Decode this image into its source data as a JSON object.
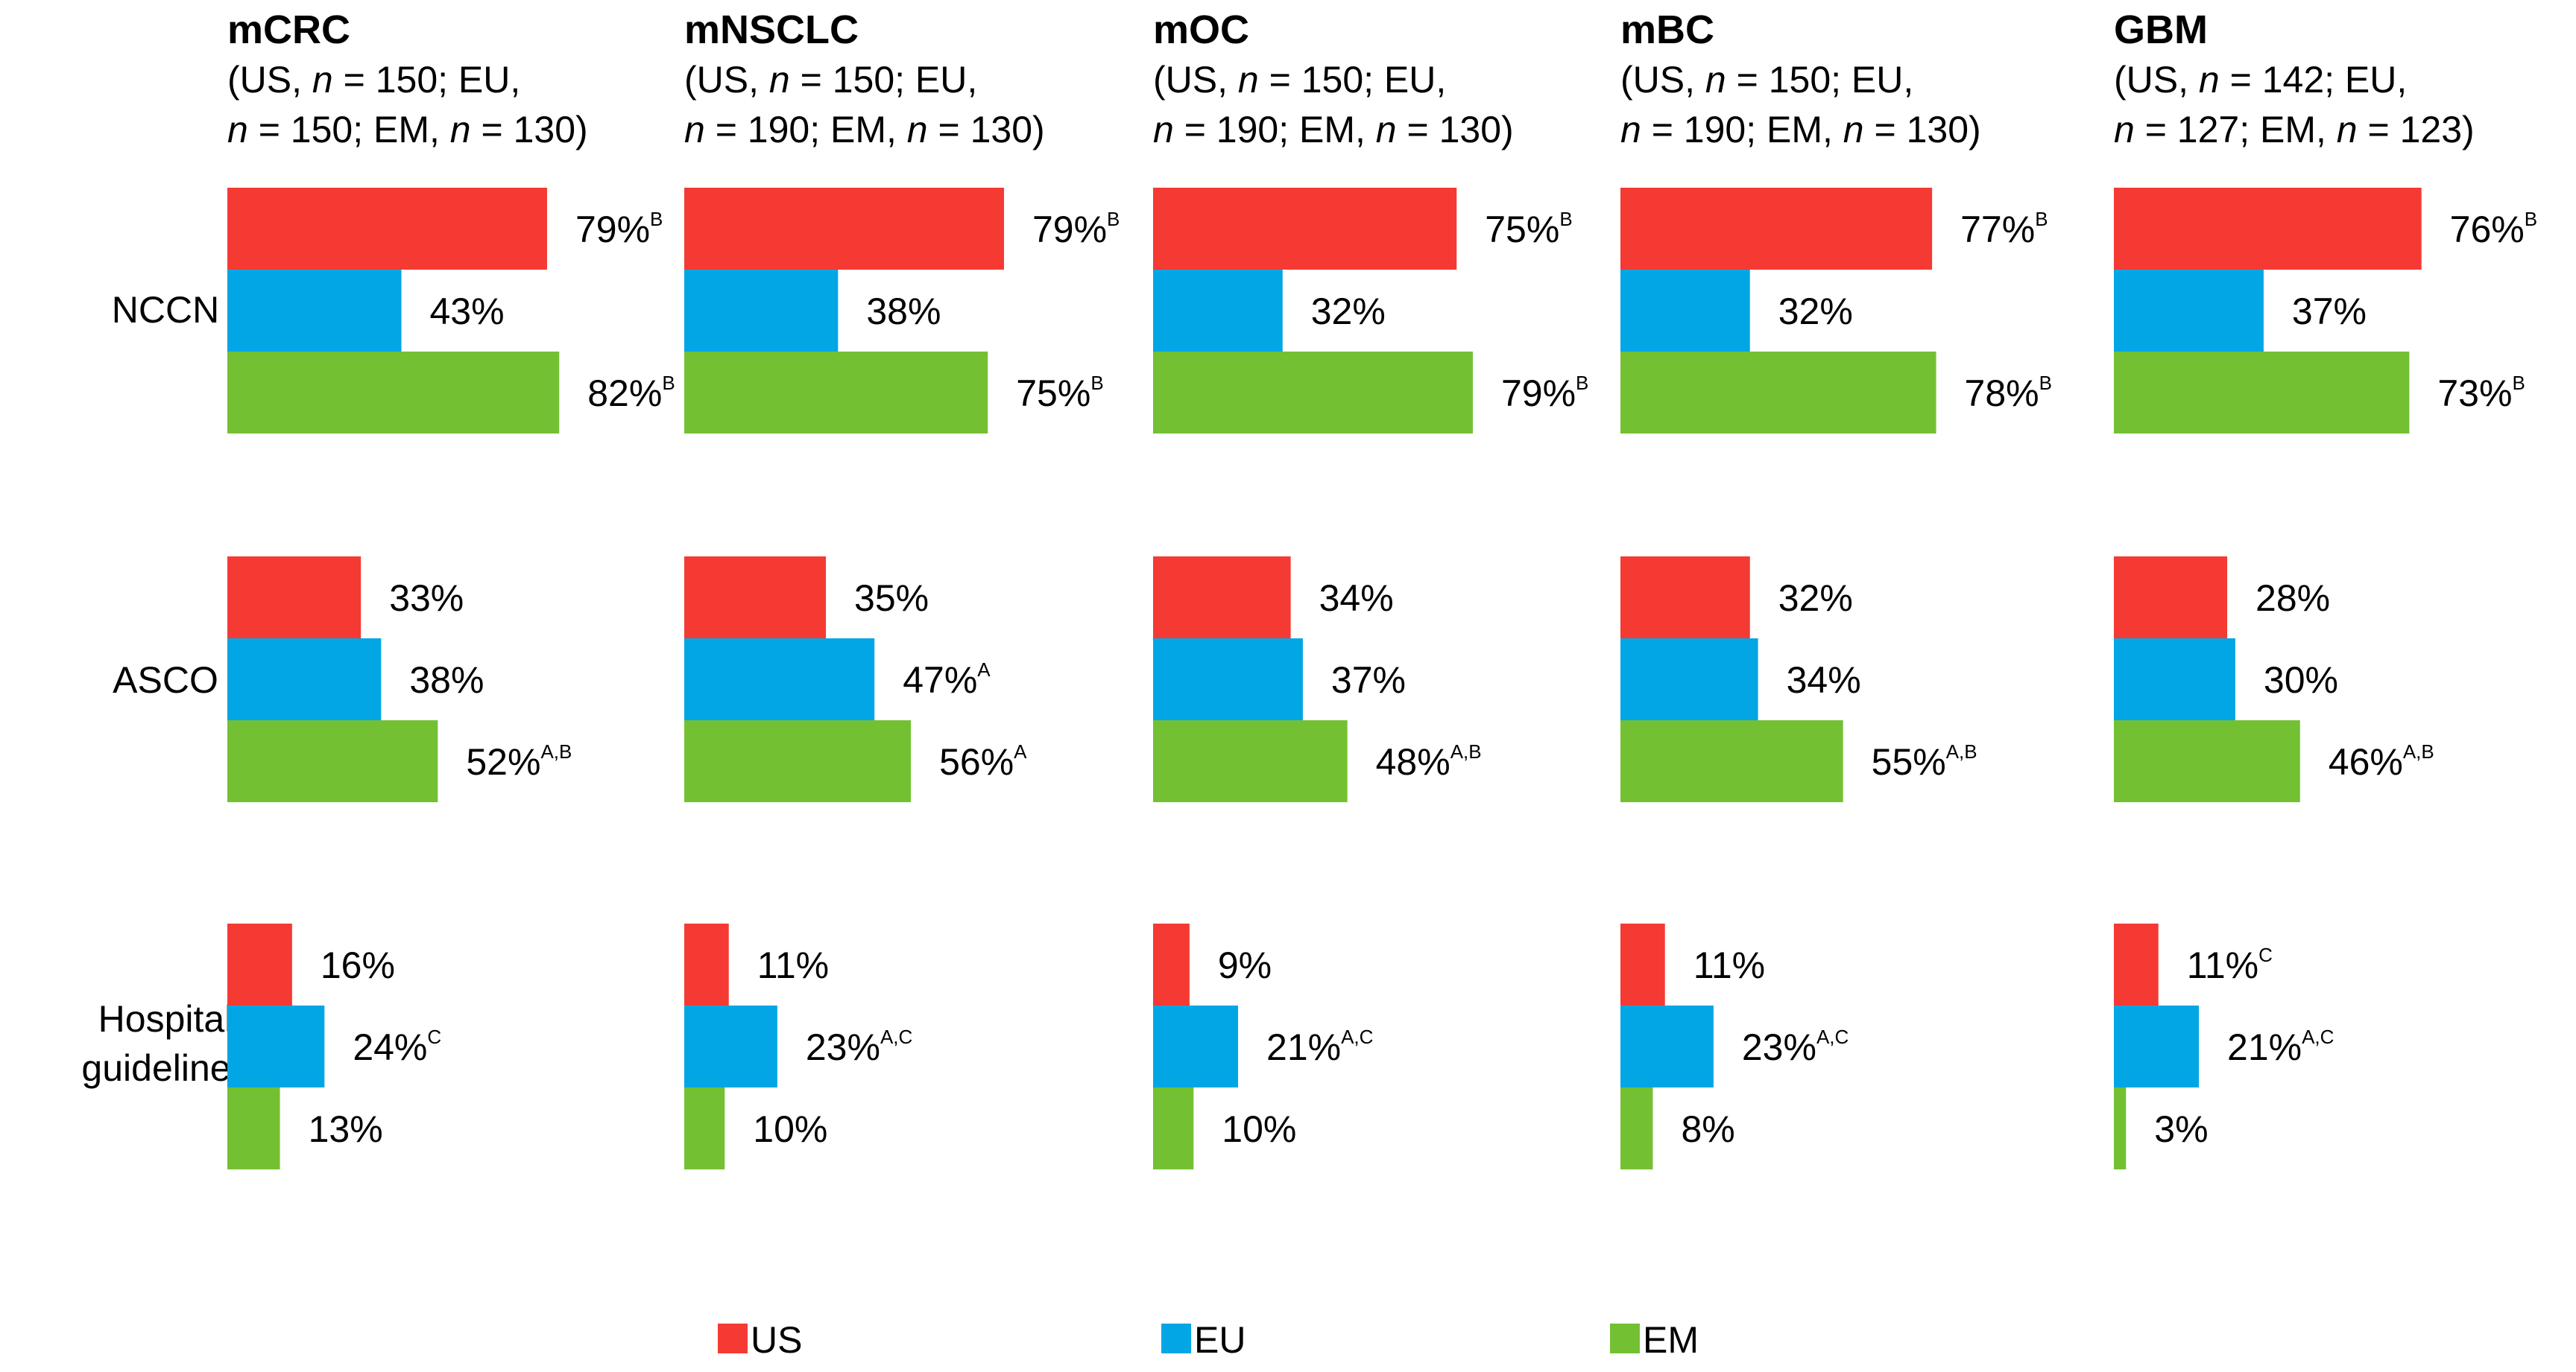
{
  "chart_data": {
    "type": "bar",
    "orientation": "horizontal",
    "title": "",
    "xlim": [
      0,
      100
    ],
    "unit": "%",
    "row_categories": [
      "NCCN",
      "ASCO",
      "Hospital guidelines"
    ],
    "legend": [
      {
        "name": "US",
        "color": "#f43a33"
      },
      {
        "name": "EU",
        "color": "#03a6e4"
      },
      {
        "name": "EM",
        "color": "#73c133"
      }
    ],
    "panels": [
      {
        "title": "mCRC",
        "subtitle": [
          [
            {
              "t": "(US, "
            },
            {
              "t": "n",
              "it": true
            },
            {
              "t": " = 150; EU,"
            }
          ],
          [
            {
              "t": "n",
              "it": true
            },
            {
              "t": " = 150; EM, "
            },
            {
              "t": "n",
              "it": true
            },
            {
              "t": " = 130)"
            }
          ]
        ],
        "rows": [
          {
            "category": "NCCN",
            "bars": [
              {
                "series": "US",
                "value": 79,
                "label": "79%",
                "sup": "B"
              },
              {
                "series": "EU",
                "value": 43,
                "label": "43%",
                "sup": ""
              },
              {
                "series": "EM",
                "value": 82,
                "label": "82%",
                "sup": "B"
              }
            ]
          },
          {
            "category": "ASCO",
            "bars": [
              {
                "series": "US",
                "value": 33,
                "label": "33%",
                "sup": ""
              },
              {
                "series": "EU",
                "value": 38,
                "label": "38%",
                "sup": ""
              },
              {
                "series": "EM",
                "value": 52,
                "label": "52%",
                "sup": "A,B"
              }
            ]
          },
          {
            "category": "Hospital guidelines",
            "bars": [
              {
                "series": "US",
                "value": 16,
                "label": "16%",
                "sup": ""
              },
              {
                "series": "EU",
                "value": 24,
                "label": "24%",
                "sup": "C"
              },
              {
                "series": "EM",
                "value": 13,
                "label": "13%",
                "sup": ""
              }
            ]
          }
        ]
      },
      {
        "title": "mNSCLC",
        "subtitle": [
          [
            {
              "t": "(US, "
            },
            {
              "t": "n",
              "it": true
            },
            {
              "t": " = 150; EU,"
            }
          ],
          [
            {
              "t": "n",
              "it": true
            },
            {
              "t": " = 190; EM, "
            },
            {
              "t": "n",
              "it": true
            },
            {
              "t": " = 130)"
            }
          ]
        ],
        "rows": [
          {
            "category": "NCCN",
            "bars": [
              {
                "series": "US",
                "value": 79,
                "label": "79%",
                "sup": "B"
              },
              {
                "series": "EU",
                "value": 38,
                "label": "38%",
                "sup": ""
              },
              {
                "series": "EM",
                "value": 75,
                "label": "75%",
                "sup": "B"
              }
            ]
          },
          {
            "category": "ASCO",
            "bars": [
              {
                "series": "US",
                "value": 35,
                "label": "35%",
                "sup": ""
              },
              {
                "series": "EU",
                "value": 47,
                "label": "47%",
                "sup": "A"
              },
              {
                "series": "EM",
                "value": 56,
                "label": "56%",
                "sup": "A"
              }
            ]
          },
          {
            "category": "Hospital guidelines",
            "bars": [
              {
                "series": "US",
                "value": 11,
                "label": "11%",
                "sup": ""
              },
              {
                "series": "EU",
                "value": 23,
                "label": "23%",
                "sup": "A,C"
              },
              {
                "series": "EM",
                "value": 10,
                "label": "10%",
                "sup": ""
              }
            ]
          }
        ]
      },
      {
        "title": "mOC",
        "subtitle": [
          [
            {
              "t": "(US, "
            },
            {
              "t": "n",
              "it": true
            },
            {
              "t": " = 150; EU,"
            }
          ],
          [
            {
              "t": "n",
              "it": true
            },
            {
              "t": " = 190; EM, "
            },
            {
              "t": "n",
              "it": true
            },
            {
              "t": " = 130)"
            }
          ]
        ],
        "rows": [
          {
            "category": "NCCN",
            "bars": [
              {
                "series": "US",
                "value": 75,
                "label": "75%",
                "sup": "B"
              },
              {
                "series": "EU",
                "value": 32,
                "label": "32%",
                "sup": ""
              },
              {
                "series": "EM",
                "value": 79,
                "label": "79%",
                "sup": "B"
              }
            ]
          },
          {
            "category": "ASCO",
            "bars": [
              {
                "series": "US",
                "value": 34,
                "label": "34%",
                "sup": ""
              },
              {
                "series": "EU",
                "value": 37,
                "label": "37%",
                "sup": ""
              },
              {
                "series": "EM",
                "value": 48,
                "label": "48%",
                "sup": "A,B"
              }
            ]
          },
          {
            "category": "Hospital guidelines",
            "bars": [
              {
                "series": "US",
                "value": 9,
                "label": "9%",
                "sup": ""
              },
              {
                "series": "EU",
                "value": 21,
                "label": "21%",
                "sup": "A,C"
              },
              {
                "series": "EM",
                "value": 10,
                "label": "10%",
                "sup": ""
              }
            ]
          }
        ]
      },
      {
        "title": "mBC",
        "subtitle": [
          [
            {
              "t": "(US, "
            },
            {
              "t": "n",
              "it": true
            },
            {
              "t": " = 150; EU,"
            }
          ],
          [
            {
              "t": "n",
              "it": true
            },
            {
              "t": " = 190; EM, "
            },
            {
              "t": "n",
              "it": true
            },
            {
              "t": " = 130)"
            }
          ]
        ],
        "rows": [
          {
            "category": "NCCN",
            "bars": [
              {
                "series": "US",
                "value": 77,
                "label": "77%",
                "sup": "B"
              },
              {
                "series": "EU",
                "value": 32,
                "label": "32%",
                "sup": ""
              },
              {
                "series": "EM",
                "value": 78,
                "label": "78%",
                "sup": "B"
              }
            ]
          },
          {
            "category": "ASCO",
            "bars": [
              {
                "series": "US",
                "value": 32,
                "label": "32%",
                "sup": ""
              },
              {
                "series": "EU",
                "value": 34,
                "label": "34%",
                "sup": ""
              },
              {
                "series": "EM",
                "value": 55,
                "label": "55%",
                "sup": "A,B"
              }
            ]
          },
          {
            "category": "Hospital guidelines",
            "bars": [
              {
                "series": "US",
                "value": 11,
                "label": "11%",
                "sup": ""
              },
              {
                "series": "EU",
                "value": 23,
                "label": "23%",
                "sup": "A,C"
              },
              {
                "series": "EM",
                "value": 8,
                "label": "8%",
                "sup": ""
              }
            ]
          }
        ]
      },
      {
        "title": "GBM",
        "subtitle": [
          [
            {
              "t": "(US, "
            },
            {
              "t": "n",
              "it": true
            },
            {
              "t": " = 142; EU,"
            }
          ],
          [
            {
              "t": "n",
              "it": true
            },
            {
              "t": " = 127; EM, "
            },
            {
              "t": "n",
              "it": true
            },
            {
              "t": " = 123)"
            }
          ]
        ],
        "rows": [
          {
            "category": "NCCN",
            "bars": [
              {
                "series": "US",
                "value": 76,
                "label": "76%",
                "sup": "B"
              },
              {
                "series": "EU",
                "value": 37,
                "label": "37%",
                "sup": ""
              },
              {
                "series": "EM",
                "value": 73,
                "label": "73%",
                "sup": "B"
              }
            ]
          },
          {
            "category": "ASCO",
            "bars": [
              {
                "series": "US",
                "value": 28,
                "label": "28%",
                "sup": ""
              },
              {
                "series": "EU",
                "value": 30,
                "label": "30%",
                "sup": ""
              },
              {
                "series": "EM",
                "value": 46,
                "label": "46%",
                "sup": "A,B"
              }
            ]
          },
          {
            "category": "Hospital guidelines",
            "bars": [
              {
                "series": "US",
                "value": 11,
                "label": "11%",
                "sup": "C"
              },
              {
                "series": "EU",
                "value": 21,
                "label": "21%",
                "sup": "A,C"
              },
              {
                "series": "EM",
                "value": 3,
                "label": "3%",
                "sup": ""
              }
            ]
          }
        ]
      }
    ]
  }
}
